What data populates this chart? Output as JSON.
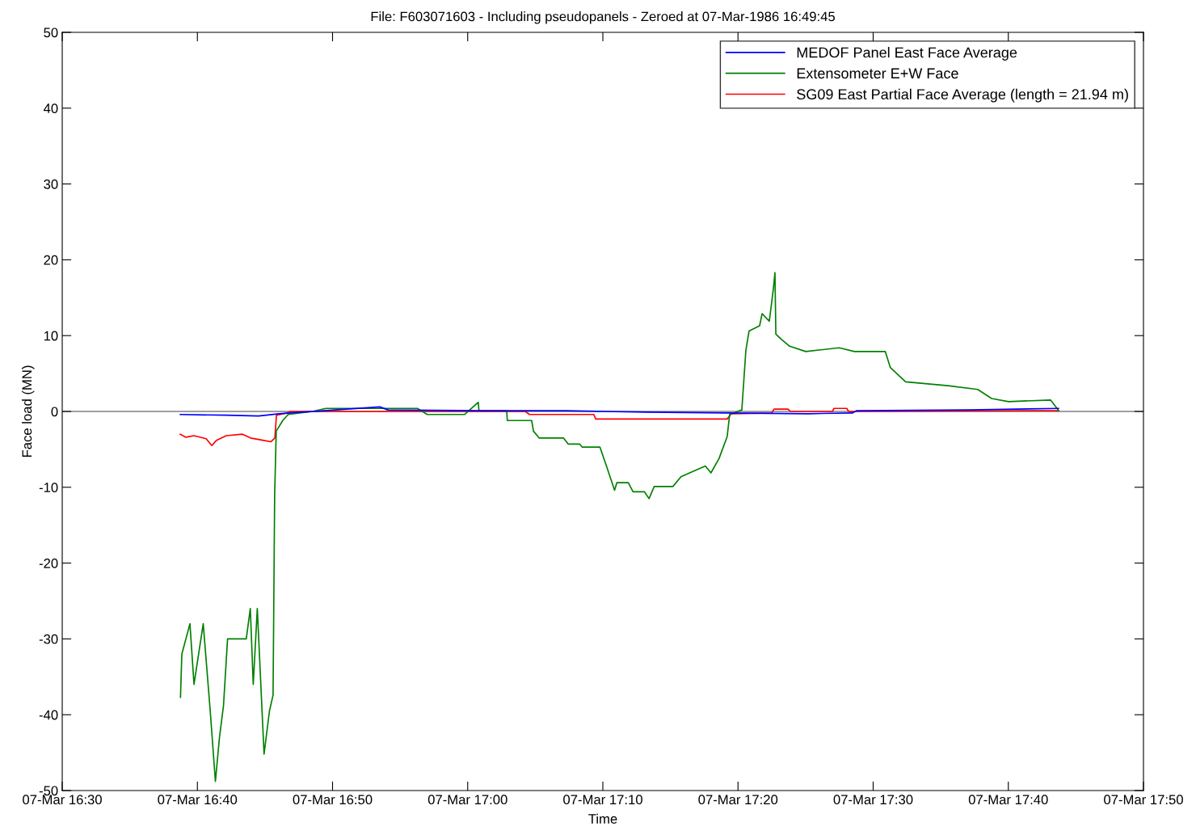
{
  "chart_data": {
    "type": "line",
    "title": "File: F603071603 - Including pseudopanels - Zeroed at 07-Mar-1986 16:49:45",
    "xlabel": "Time",
    "ylabel": "Face load (MN)",
    "xlim": [
      "1986-03-07T16:30",
      "1986-03-07T17:50"
    ],
    "xticks": [
      {
        "value": "1986-03-07T16:30",
        "label": "07-Mar 16:30"
      },
      {
        "value": "1986-03-07T16:40",
        "label": "07-Mar 16:40"
      },
      {
        "value": "1986-03-07T16:50",
        "label": "07-Mar 16:50"
      },
      {
        "value": "1986-03-07T17:00",
        "label": "07-Mar 17:00"
      },
      {
        "value": "1986-03-07T17:10",
        "label": "07-Mar 17:10"
      },
      {
        "value": "1986-03-07T17:20",
        "label": "07-Mar 17:20"
      },
      {
        "value": "1986-03-07T17:30",
        "label": "07-Mar 17:30"
      },
      {
        "value": "1986-03-07T17:40",
        "label": "07-Mar 17:40"
      },
      {
        "value": "1986-03-07T17:50",
        "label": "07-Mar 17:50"
      }
    ],
    "ylim": [
      -50,
      50
    ],
    "yticks": [
      -50,
      -40,
      -30,
      -20,
      -10,
      0,
      10,
      20,
      30,
      40,
      50
    ],
    "grid": false,
    "legend": "top right",
    "line_style": "solid",
    "marker": "none",
    "ref_lines": [
      {
        "axis": "y",
        "value": 0,
        "color": "#808080"
      }
    ],
    "series": [
      {
        "name": "MEDOF Panel East Face Average",
        "color": "#0000ff",
        "x": [
          "1986-03-07T16:38:44",
          "1986-03-07T16:42:08",
          "1986-03-07T16:44:32",
          "1986-03-07T16:46:02",
          "1986-03-07T16:49:19",
          "1986-03-07T16:53:30",
          "1986-03-07T16:54:06",
          "1986-03-07T17:01:16",
          "1986-03-07T17:07:15",
          "1986-03-07T17:13:14",
          "1986-03-07T17:19:12",
          "1986-03-07T17:25:11",
          "1986-03-07T17:28:29",
          "1986-03-07T17:28:47",
          "1986-03-07T17:37:09",
          "1986-03-07T17:43:43"
        ],
        "values": [
          -0.4,
          -0.5,
          -0.6,
          -0.3,
          0.1,
          0.6,
          0.2,
          0.1,
          0.1,
          -0.1,
          -0.2,
          -0.3,
          -0.2,
          0.1,
          0.2,
          0.4
        ]
      },
      {
        "name": "Extensometer E+W Face",
        "color": "#008000",
        "x": [
          "1986-03-07T16:38:45",
          "1986-03-07T16:38:51",
          "1986-03-07T16:39:27",
          "1986-03-07T16:39:45",
          "1986-03-07T16:40:26",
          "1986-03-07T16:40:57",
          "1986-03-07T16:41:20",
          "1986-03-07T16:41:38",
          "1986-03-07T16:41:56",
          "1986-03-07T16:42:14",
          "1986-03-07T16:43:37",
          "1986-03-07T16:43:55",
          "1986-03-07T16:44:08",
          "1986-03-07T16:44:26",
          "1986-03-07T16:44:56",
          "1986-03-07T16:45:20",
          "1986-03-07T16:45:36",
          "1986-03-07T16:45:43",
          "1986-03-07T16:45:50",
          "1986-03-07T16:46:19",
          "1986-03-07T16:46:43",
          "1986-03-07T16:48:31",
          "1986-03-07T16:49:30",
          "1986-03-07T16:56:17",
          "1986-03-07T16:57:00",
          "1986-03-07T16:59:46",
          "1986-03-07T17:00:47",
          "1986-03-07T17:00:50",
          "1986-03-07T17:02:53",
          "1986-03-07T17:02:56",
          "1986-03-07T17:04:44",
          "1986-03-07T17:04:52",
          "1986-03-07T17:05:17",
          "1986-03-07T17:07:05",
          "1986-03-07T17:07:26",
          "1986-03-07T17:08:17",
          "1986-03-07T17:08:28",
          "1986-03-07T17:09:47",
          "1986-03-07T17:10:16",
          "1986-03-07T17:10:52",
          "1986-03-07T17:11:02",
          "1986-03-07T17:11:53",
          "1986-03-07T17:12:14",
          "1986-03-07T17:13:05",
          "1986-03-07T17:13:25",
          "1986-03-07T17:13:48",
          "1986-03-07T17:15:11",
          "1986-03-07T17:15:47",
          "1986-03-07T17:16:48",
          "1986-03-07T17:17:35",
          "1986-03-07T17:18:00",
          "1986-03-07T17:18:36",
          "1986-03-07T17:19:12",
          "1986-03-07T17:19:23",
          "1986-03-07T17:20:17",
          "1986-03-07T17:20:35",
          "1986-03-07T17:20:49",
          "1986-03-07T17:21:36",
          "1986-03-07T17:21:47",
          "1986-03-07T17:22:19",
          "1986-03-07T17:22:37",
          "1986-03-07T17:22:44",
          "1986-03-07T17:22:48",
          "1986-03-07T17:23:13",
          "1986-03-07T17:23:49",
          "1986-03-07T17:25:01",
          "1986-03-07T17:27:29",
          "1986-03-07T17:28:37",
          "1986-03-07T17:30:54",
          "1986-03-07T17:31:16",
          "1986-03-07T17:32:24",
          "1986-03-07T17:35:31",
          "1986-03-07T17:37:44",
          "1986-03-07T17:38:46",
          "1986-03-07T17:40:01",
          "1986-03-07T17:43:08",
          "1986-03-07T17:43:44"
        ],
        "values": [
          -37.7,
          -32,
          -28,
          -36,
          -28,
          -39.5,
          -48.8,
          -43,
          -38.8,
          -30,
          -30,
          -26,
          -36,
          -26,
          -45.2,
          -39.5,
          -37.4,
          -11.1,
          -2.6,
          -1.2,
          -0.4,
          0,
          0.4,
          0.4,
          -0.4,
          -0.4,
          1.2,
          0.1,
          0.1,
          -1.2,
          -1.2,
          -2.6,
          -3.5,
          -3.5,
          -4.3,
          -4.3,
          -4.7,
          -4.7,
          -7.2,
          -10.4,
          -9.4,
          -9.4,
          -10.6,
          -10.6,
          -11.5,
          -9.9,
          -9.9,
          -8.6,
          -7.8,
          -7.2,
          -8.1,
          -6.2,
          -3.3,
          -0.4,
          0.2,
          8.1,
          10.6,
          11.3,
          12.9,
          11.9,
          16.2,
          18.3,
          10.2,
          9.5,
          8.6,
          7.9,
          8.4,
          7.9,
          7.9,
          5.8,
          3.9,
          3.4,
          2.9,
          1.7,
          1.3,
          1.5,
          0.1
        ]
      },
      {
        "name": "SG09 East Partial Face Average (length = 21.94 m)",
        "color": "#ff0000",
        "x": [
          "1986-03-07T16:38:44",
          "1986-03-07T16:39:09",
          "1986-03-07T16:39:45",
          "1986-03-07T16:40:39",
          "1986-03-07T16:41:04",
          "1986-03-07T16:41:25",
          "1986-03-07T16:42:08",
          "1986-03-07T16:43:20",
          "1986-03-07T16:43:56",
          "1986-03-07T16:44:50",
          "1986-03-07T16:45:26",
          "1986-03-07T16:45:44",
          "1986-03-07T16:45:51",
          "1986-03-07T16:46:37",
          "1986-03-07T16:46:55",
          "1986-03-07T17:04:16",
          "1986-03-07T17:04:34",
          "1986-03-07T17:09:20",
          "1986-03-07T17:09:28",
          "1986-03-07T17:19:12",
          "1986-03-07T17:19:30",
          "1986-03-07T17:22:30",
          "1986-03-07T17:22:40",
          "1986-03-07T17:23:42",
          "1986-03-07T17:23:53",
          "1986-03-07T17:26:59",
          "1986-03-07T17:27:06",
          "1986-03-07T17:28:03",
          "1986-03-07T17:28:11",
          "1986-03-07T17:43:43"
        ],
        "values": [
          -3.0,
          -3.4,
          -3.2,
          -3.6,
          -4.5,
          -3.8,
          -3.2,
          -3.0,
          -3.5,
          -3.8,
          -4.0,
          -3.5,
          -0.5,
          -0.2,
          0.0,
          0.0,
          -0.4,
          -0.4,
          -1.0,
          -1.0,
          -0.3,
          -0.2,
          0.3,
          0.3,
          0.0,
          0.0,
          0.4,
          0.4,
          0.0,
          0.1
        ]
      }
    ]
  }
}
